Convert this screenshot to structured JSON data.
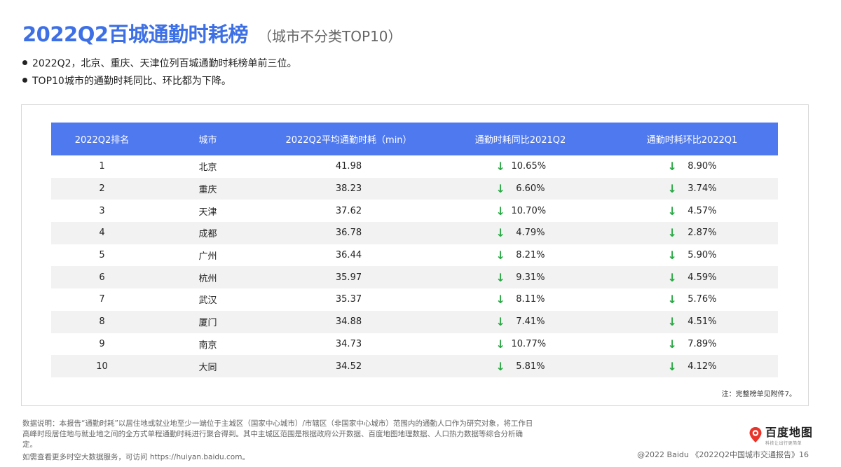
{
  "title": {
    "main": "2022Q2百城通勤时耗榜",
    "sub": "（城市不分类TOP10）"
  },
  "bullets": [
    "2022Q2，北京、重庆、天津位列百城通勤时耗榜单前三位。",
    "TOP10城市的通勤时耗同比、环比都为下降。"
  ],
  "table": {
    "headers": [
      "2022Q2排名",
      "城市",
      "2022Q2平均通勤时耗（min）",
      "通勤时耗同比2021Q2",
      "通勤时耗环比2022Q1"
    ],
    "rows": [
      {
        "rank": "1",
        "city": "北京",
        "avg": "41.98",
        "yoy": "10.65%",
        "qoq": "8.90%"
      },
      {
        "rank": "2",
        "city": "重庆",
        "avg": "38.23",
        "yoy": "6.60%",
        "qoq": "3.74%"
      },
      {
        "rank": "3",
        "city": "天津",
        "avg": "37.62",
        "yoy": "10.70%",
        "qoq": "4.57%"
      },
      {
        "rank": "4",
        "city": "成都",
        "avg": "36.78",
        "yoy": "4.79%",
        "qoq": "2.87%"
      },
      {
        "rank": "5",
        "city": "广州",
        "avg": "36.44",
        "yoy": "8.21%",
        "qoq": "5.90%"
      },
      {
        "rank": "6",
        "city": "杭州",
        "avg": "35.97",
        "yoy": "9.31%",
        "qoq": "4.59%"
      },
      {
        "rank": "7",
        "city": "武汉",
        "avg": "35.37",
        "yoy": "8.11%",
        "qoq": "5.76%"
      },
      {
        "rank": "8",
        "city": "厦门",
        "avg": "34.88",
        "yoy": "7.41%",
        "qoq": "4.51%"
      },
      {
        "rank": "9",
        "city": "南京",
        "avg": "34.73",
        "yoy": "10.77%",
        "qoq": "7.89%"
      },
      {
        "rank": "10",
        "city": "大同",
        "avg": "34.52",
        "yoy": "5.81%",
        "qoq": "4.12%"
      }
    ],
    "down_arrow": "↓"
  },
  "note": "注：完整榜单见附件7。",
  "footer": {
    "description": "数据说明：本报告“通勤时耗”以居住地或就业地至少一端位于主城区（国家中心城市）/市辖区（非国家中心城市）范围内的通勤人口作为研究对象，将工作日高峰时段居住地与就业地之间的全方式单程通勤时耗进行聚合得到。其中主城区范围是根据政府公开数据、百度地图地理数据、人口热力数据等综合分析确定。",
    "link": "如需查看更多时空大数据服务，可访问 https://huiyan.baidu.com。",
    "credit": "@2022 Baidu 《2022Q2中国城市交通报告》16"
  },
  "logo": {
    "name": "百度地图",
    "slogan": "科技让出行更简单",
    "icon": "map-pin-icon"
  },
  "colors": {
    "title": "#3d6fe5",
    "header_bg": "#4f79ef",
    "arrow": "#2aa845",
    "stripe": "#f2f2f2",
    "logo_pin": "#e8352b"
  }
}
